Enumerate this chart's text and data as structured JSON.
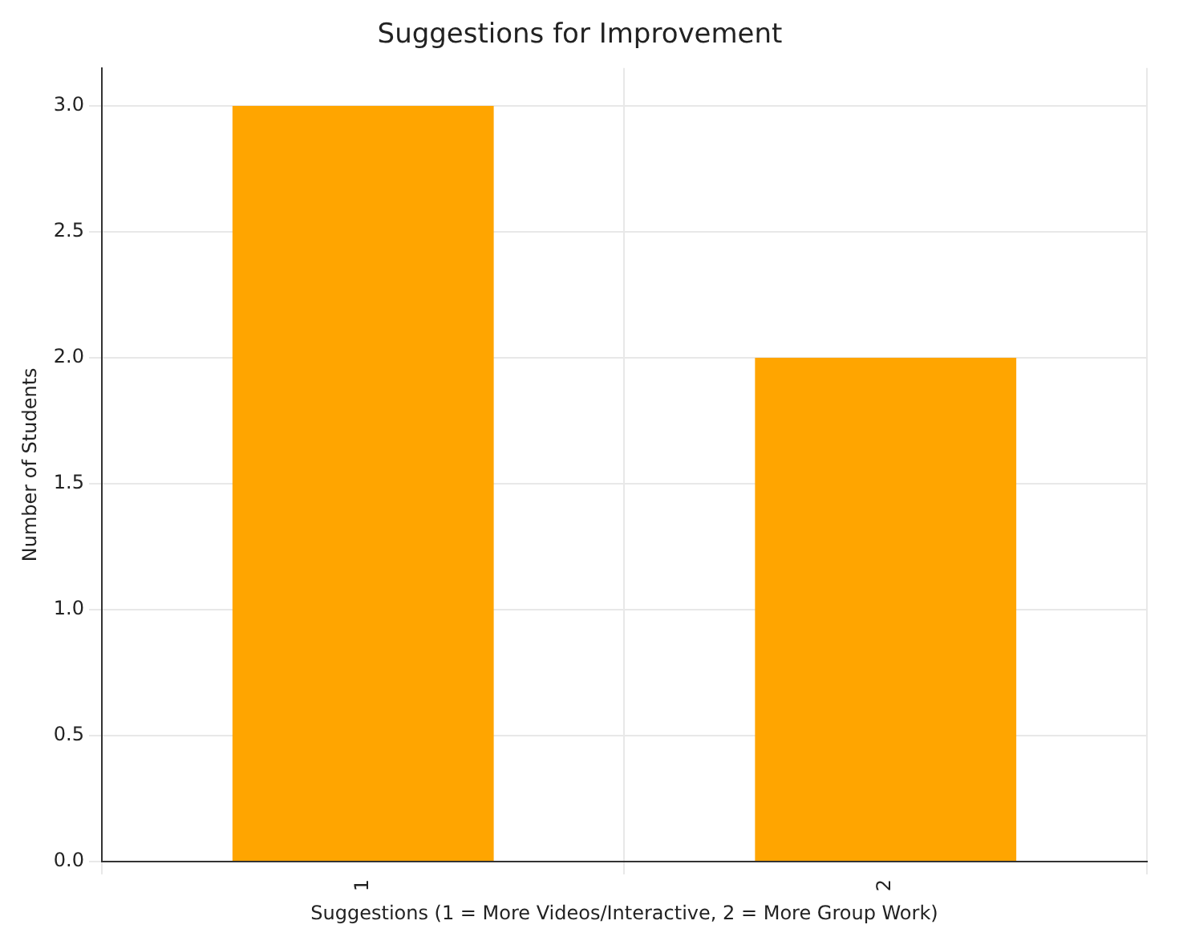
{
  "chart_data": {
    "type": "bar",
    "title": "Suggestions for Improvement",
    "xlabel": "Suggestions (1 = More Videos/Interactive, 2 = More Group Work)",
    "ylabel": "Number of Students",
    "categories": [
      "1",
      "2"
    ],
    "values": [
      3,
      2
    ],
    "color": "#ffa500",
    "ylim": [
      0,
      3.15
    ],
    "yticks": [
      {
        "value": 0,
        "label": "0.0"
      },
      {
        "value": 0.5,
        "label": "0.5"
      },
      {
        "value": 1,
        "label": "1.0"
      },
      {
        "value": 1.5,
        "label": "1.5"
      },
      {
        "value": 2,
        "label": "2.0"
      },
      {
        "value": 2.5,
        "label": "2.5"
      },
      {
        "value": 3,
        "label": "3.0"
      }
    ],
    "grid": true
  }
}
